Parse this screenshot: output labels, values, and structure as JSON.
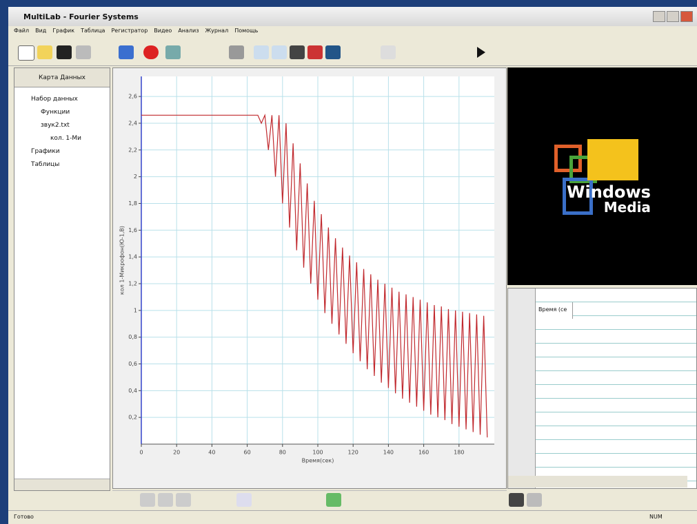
{
  "window": {
    "title": "MultiLab - Fourier Systems"
  },
  "menu": [
    "Файл",
    "Вид",
    "График",
    "Таблица",
    "Регистратор",
    "Видео",
    "Анализ",
    "Журнал",
    "Помощь"
  ],
  "data_map": {
    "title": "Карта Данных",
    "tree": [
      "Набор данных",
      "Функции",
      "звук2.txt",
      "кол. 1-Ми",
      "Графики",
      "Таблицы"
    ]
  },
  "chart_data": {
    "type": "line",
    "y_label": "кол 1-Микрофон(Ю-1,В)",
    "x_label": "Время(сек)",
    "color": "#c0282d",
    "grid": true,
    "xlim": [
      0,
      200
    ],
    "ylim": [
      0,
      2.75
    ],
    "xticks": [
      0,
      20,
      40,
      60,
      80,
      100,
      120,
      140,
      160,
      180
    ],
    "yticks": [
      {
        "value": 0.2,
        "label": "0,2"
      },
      {
        "value": 0.4,
        "label": "0,4"
      },
      {
        "value": 0.6,
        "label": "0,6"
      },
      {
        "value": 0.8,
        "label": "0,8"
      },
      {
        "value": 1,
        "label": "1"
      },
      {
        "value": 1.2,
        "label": "1,2"
      },
      {
        "value": 1.4,
        "label": "1,4"
      },
      {
        "value": 1.6,
        "label": "1,6"
      },
      {
        "value": 1.8,
        "label": "1,8"
      },
      {
        "value": 2,
        "label": "2"
      },
      {
        "value": 2.2,
        "label": "2,2"
      },
      {
        "value": 2.4,
        "label": "2,4"
      },
      {
        "value": 2.6,
        "label": "2,6"
      }
    ],
    "x": [
      0,
      64,
      66,
      68,
      70,
      72,
      74,
      76,
      78,
      80,
      82,
      84,
      86,
      88,
      90,
      92,
      94,
      96,
      98,
      100,
      102,
      104,
      106,
      108,
      110,
      112,
      114,
      116,
      118,
      120,
      122,
      124,
      126,
      128,
      130,
      132,
      134,
      136,
      138,
      140,
      142,
      144,
      146,
      148,
      150,
      152,
      154,
      156,
      158,
      160,
      162,
      164,
      166,
      168,
      170,
      172,
      174,
      176,
      178,
      180,
      182,
      184,
      186,
      188,
      190,
      192,
      194,
      196
    ],
    "values": [
      2.46,
      2.46,
      2.46,
      2.4,
      2.46,
      2.2,
      2.46,
      2.0,
      2.46,
      1.8,
      2.4,
      1.62,
      2.25,
      1.45,
      2.1,
      1.32,
      1.95,
      1.2,
      1.82,
      1.08,
      1.72,
      0.98,
      1.62,
      0.9,
      1.54,
      0.82,
      1.47,
      0.75,
      1.41,
      0.68,
      1.36,
      0.62,
      1.31,
      0.56,
      1.27,
      0.51,
      1.23,
      0.46,
      1.2,
      0.42,
      1.17,
      0.38,
      1.14,
      0.34,
      1.12,
      0.31,
      1.1,
      0.28,
      1.08,
      0.25,
      1.06,
      0.22,
      1.04,
      0.2,
      1.03,
      0.18,
      1.01,
      0.15,
      1.0,
      0.13,
      0.99,
      0.11,
      0.98,
      0.09,
      0.97,
      0.07,
      0.96,
      0.05
    ]
  },
  "media": {
    "logo": [
      "Windows",
      "Media"
    ]
  },
  "table": {
    "headers": [
      "Время (се"
    ]
  },
  "status": {
    "left": "Готово",
    "right": "NUM"
  }
}
